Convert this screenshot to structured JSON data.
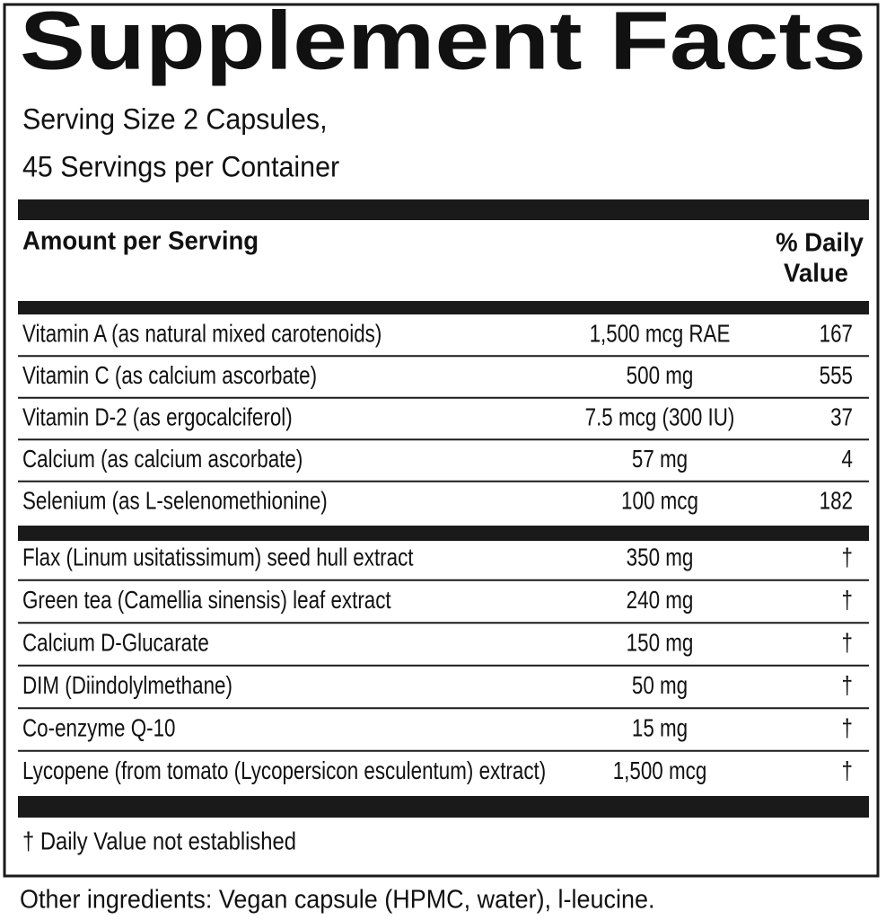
{
  "title": "Supplement Facts",
  "serving": [
    "Serving Size 2 Capsules,",
    "45 Servings per Container"
  ],
  "header": {
    "amount": "Amount per Serving",
    "daily_value": [
      "% Daily",
      "Value"
    ]
  },
  "vitamins": [
    {
      "name": "Vitamin A (as natural mixed carotenoids)",
      "amount": "1,500 mcg RAE",
      "dv": "167"
    },
    {
      "name": "Vitamin C (as calcium ascorbate)",
      "amount": "500 mg",
      "dv": "555"
    },
    {
      "name": "Vitamin D-2 (as ergocalciferol)",
      "amount": "7.5 mcg (300 IU)",
      "dv": "37"
    },
    {
      "name": "Calcium (as calcium ascorbate)",
      "amount": "57 mg",
      "dv": "4"
    },
    {
      "name": "Selenium (as L-selenomethionine)",
      "amount": "100 mcg",
      "dv": "182"
    }
  ],
  "other_nutrients": [
    {
      "name": "Flax (Linum usitatissimum) seed hull extract",
      "amount": "350 mg",
      "dv": "†"
    },
    {
      "name": "Green tea (Camellia sinensis) leaf extract",
      "amount": "240 mg",
      "dv": "†"
    },
    {
      "name": "Calcium D-Glucarate",
      "amount": "150 mg",
      "dv": "†"
    },
    {
      "name": "DIM (Diindolylmethane)",
      "amount": "50 mg",
      "dv": "†"
    },
    {
      "name": "Co-enzyme Q-10",
      "amount": "15 mg",
      "dv": "†"
    },
    {
      "name": "Lycopene (from tomato (Lycopersicon esculentum) extract)",
      "amount": "1,500 mcg",
      "dv": "†"
    }
  ],
  "footnote": "† Daily Value not established",
  "other_ingredients": "Other ingredients: Vegan capsule (HPMC, water), l-leucine."
}
